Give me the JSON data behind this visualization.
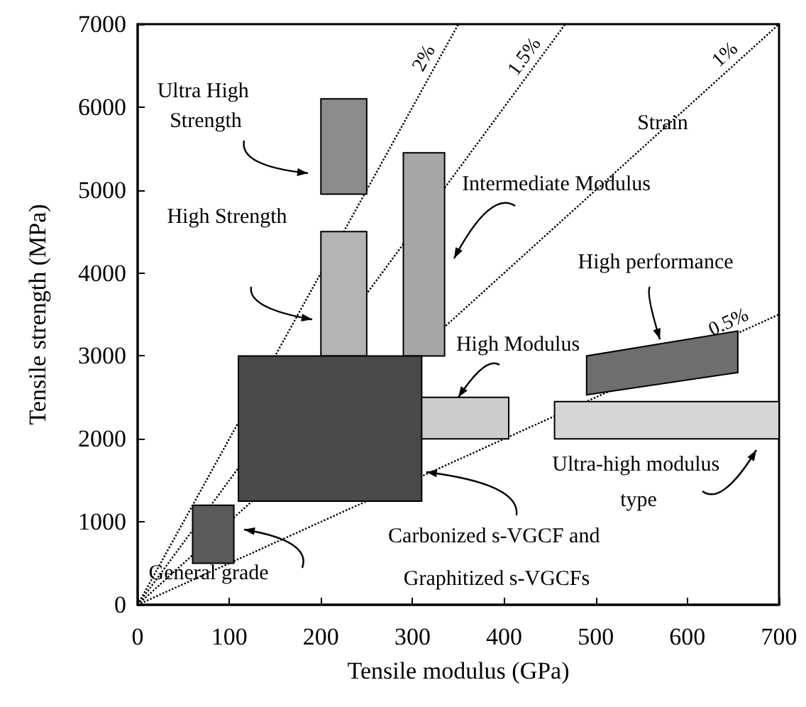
{
  "chart_data": {
    "type": "area",
    "xlabel": "Tensile modulus (GPa)",
    "ylabel": "Tensile strength (MPa)",
    "xlim": [
      0,
      700
    ],
    "ylim": [
      0,
      7000
    ],
    "xticks": [
      0,
      100,
      200,
      300,
      400,
      500,
      600,
      700
    ],
    "yticks": [
      0,
      1000,
      2000,
      3000,
      4000,
      5000,
      6000,
      7000
    ],
    "grid": false,
    "series": [
      {
        "color": "#8c8c8c",
        "x": [
          200,
          250,
          250,
          200
        ],
        "values": [
          4950,
          4950,
          6100,
          6100
        ]
      },
      {
        "color": "#b4b4b4",
        "x": [
          200,
          250,
          250,
          200
        ],
        "values": [
          3000,
          3000,
          4500,
          4500
        ]
      },
      {
        "color": "#a6a6a6",
        "x": [
          290,
          335,
          335,
          290
        ],
        "values": [
          3000,
          3000,
          5450,
          5450
        ]
      },
      {
        "color": "#4a4a4a",
        "x": [
          110,
          310,
          310,
          110
        ],
        "values": [
          1250,
          1250,
          3000,
          3000
        ]
      },
      {
        "color": "#5a5a5a",
        "x": [
          60,
          105,
          105,
          60
        ],
        "values": [
          500,
          500,
          1200,
          1200
        ]
      },
      {
        "color": "#cccccc",
        "x": [
          310,
          405,
          405,
          310
        ],
        "values": [
          2000,
          2000,
          2500,
          2500
        ]
      },
      {
        "color": "#d6d6d6",
        "x": [
          455,
          700,
          700,
          455
        ],
        "values": [
          2000,
          2000,
          2450,
          2450
        ]
      },
      {
        "color": "#6e6e6e",
        "x": [
          490,
          655,
          655,
          490
        ],
        "values": [
          2530,
          2800,
          3300,
          3000
        ]
      },
      {
        "type": "line",
        "name": "2%",
        "color": "#000000",
        "line_style": "dotted",
        "x": [
          0,
          350
        ],
        "values": [
          0,
          7000
        ]
      },
      {
        "type": "line",
        "name": "1.5%",
        "color": "#000000",
        "line_style": "dotted",
        "x": [
          0,
          466.7
        ],
        "values": [
          0,
          7000
        ]
      },
      {
        "type": "line",
        "name": "1%",
        "color": "#000000",
        "line_style": "dotted",
        "x": [
          0,
          700
        ],
        "values": [
          0,
          7000
        ]
      },
      {
        "type": "line",
        "name": "0.5%",
        "color": "#000000",
        "line_style": "dotted",
        "x": [
          0,
          700
        ],
        "values": [
          0,
          3500
        ]
      }
    ],
    "annotations": [
      "Ultra High Strength",
      "Intermediate Modulus",
      "High Strength",
      {
        "text": "High Modulus",
        "x": 350,
        "y": 2500
      },
      {
        "text": "Carbonized s-VGCF and Graphitized s-VGCFs",
        "x": 315,
        "y": 1600
      },
      "General grade",
      {
        "text": "High performance",
        "x": 570,
        "y": 3200
      },
      "Ultra-high modulus type",
      "Strain"
    ]
  }
}
